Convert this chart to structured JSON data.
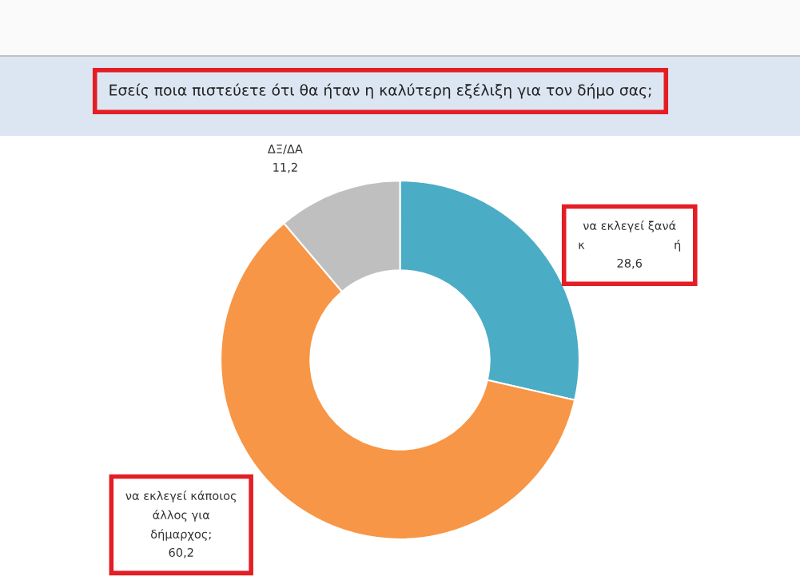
{
  "chart_data": {
    "type": "donut",
    "title": "Εσείς ποια πιστεύετε ότι θα ήταν η καλύτερη εξέλιξη για τον δήμο σας;",
    "categories": [
      "να εκλεγεί ξανά\nκ                        ή",
      "να εκλεγεί κάποιος\nάλλος για\nδήμαρχος;",
      "ΔΞ/ΔΑ"
    ],
    "values": [
      28.6,
      60.2,
      11.2
    ],
    "value_labels": [
      "28,6",
      "60,2",
      "11,2"
    ],
    "colors": [
      "#4bacc6",
      "#f79646",
      "#bfbfbf"
    ]
  }
}
